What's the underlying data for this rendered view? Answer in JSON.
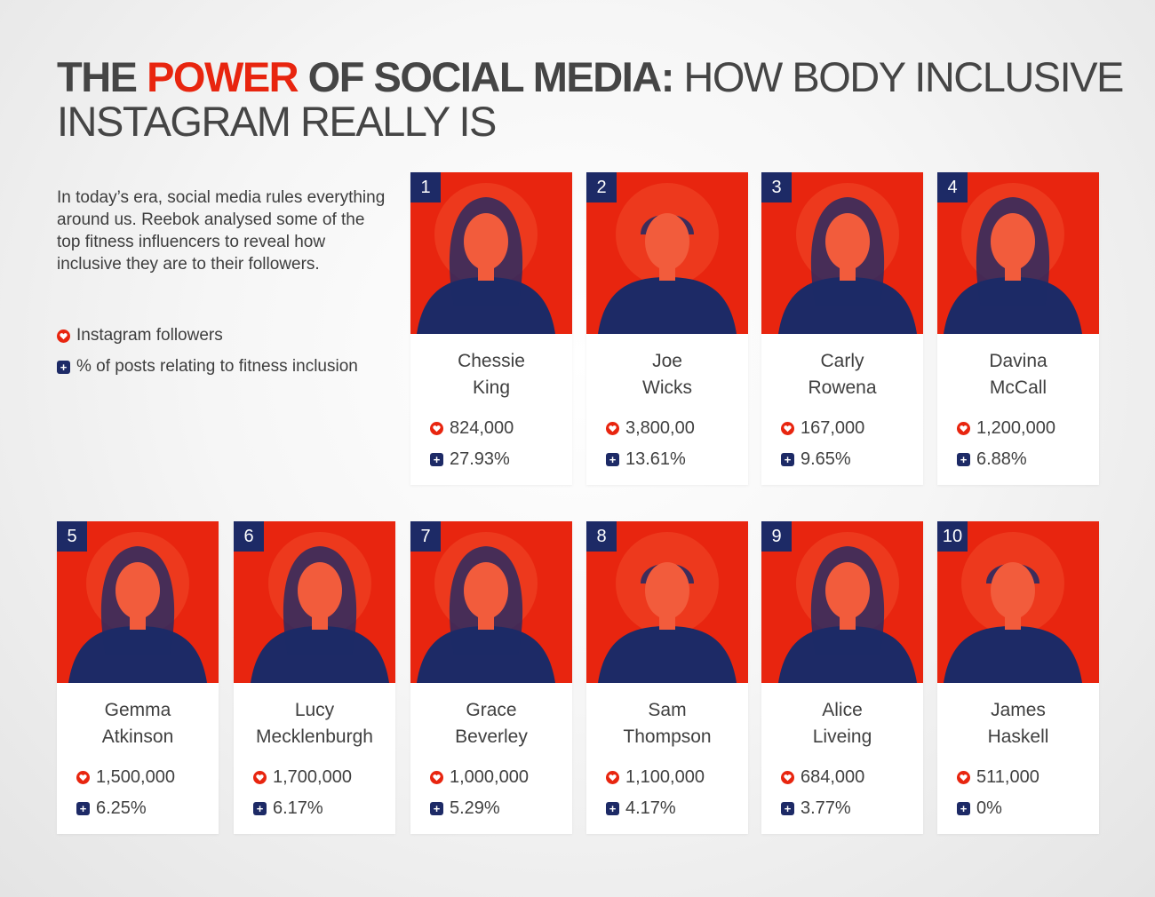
{
  "theme": {
    "red": "#e8250f",
    "navy": "#1d2a66",
    "text": "#404040"
  },
  "title": {
    "part1": "THE ",
    "part2": "POWER",
    "part3": " OF SOCIAL MEDIA:",
    "part4": " HOW BODY INCLUSIVE INSTAGRAM REALLY IS"
  },
  "intro": "In today’s era, social media rules everything around us. Reebok analysed some of the top fitness influencers to reveal how inclusive they are to their followers.",
  "legend": {
    "followers_label": "Instagram followers",
    "followers_icon": "heart-icon",
    "pct_label": "% of posts relating to fitness inclusion",
    "pct_icon": "plus-icon"
  },
  "influencers": [
    {
      "rank": "1",
      "first": "Chessie",
      "last": "King",
      "followers": "824,000",
      "pct": "27.93%"
    },
    {
      "rank": "2",
      "first": "Joe",
      "last": "Wicks",
      "followers": "3,800,00",
      "pct": "13.61%"
    },
    {
      "rank": "3",
      "first": "Carly",
      "last": "Rowena",
      "followers": "167,000",
      "pct": "9.65%"
    },
    {
      "rank": "4",
      "first": "Davina",
      "last": "McCall",
      "followers": "1,200,000",
      "pct": "6.88%"
    },
    {
      "rank": "5",
      "first": "Gemma",
      "last": "Atkinson",
      "followers": "1,500,000",
      "pct": "6.25%"
    },
    {
      "rank": "6",
      "first": "Lucy",
      "last": "Mecklenburgh",
      "followers": "1,700,000",
      "pct": "6.17%"
    },
    {
      "rank": "7",
      "first": "Grace",
      "last": "Beverley",
      "followers": "1,000,000",
      "pct": "5.29%"
    },
    {
      "rank": "8",
      "first": "Sam",
      "last": "Thompson",
      "followers": "1,100,000",
      "pct": "4.17%"
    },
    {
      "rank": "9",
      "first": "Alice",
      "last": "Liveing",
      "followers": "684,000",
      "pct": "3.77%"
    },
    {
      "rank": "10",
      "first": "James",
      "last": "Haskell",
      "followers": "511,000",
      "pct": "0%"
    }
  ]
}
